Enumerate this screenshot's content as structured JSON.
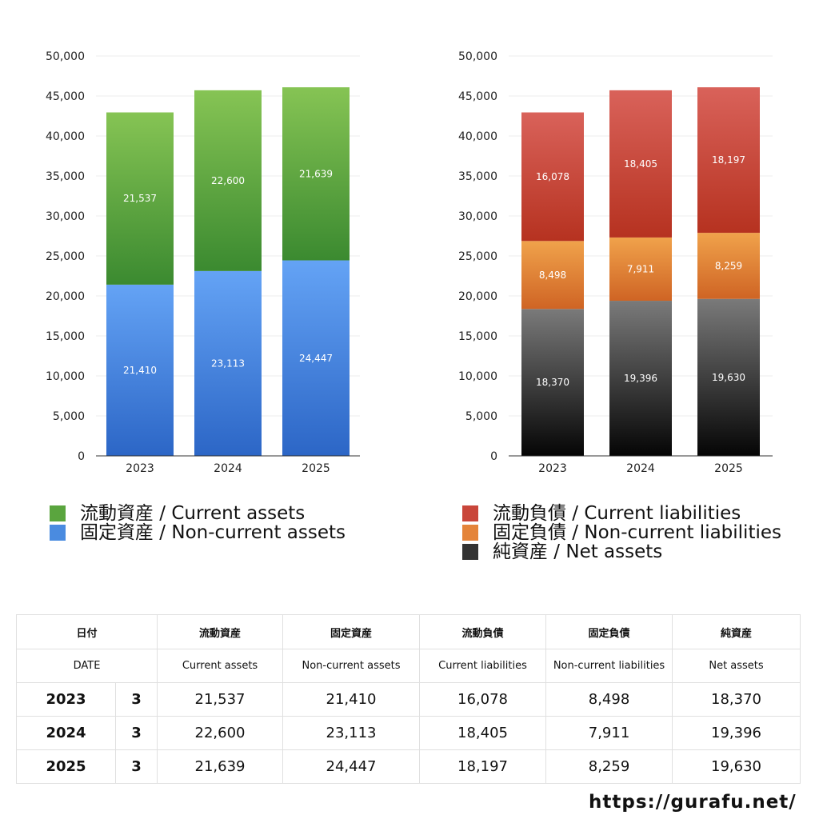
{
  "chart_data": [
    {
      "type": "bar",
      "stacked": true,
      "categories": [
        "2023",
        "2024",
        "2025"
      ],
      "series": [
        {
          "name": "固定資産 / Non-current assets",
          "values": [
            21410,
            23113,
            24447
          ],
          "color_top": "#64a3f5",
          "color_bottom": "#2c66c6"
        },
        {
          "name": "流動資産 / Current assets",
          "values": [
            21537,
            22600,
            21639
          ],
          "color_top": "#86c454",
          "color_bottom": "#3b8a30"
        }
      ],
      "ylim": [
        0,
        50000
      ],
      "yticks": [
        "0",
        "5,000",
        "10,000",
        "15,000",
        "20,000",
        "25,000",
        "30,000",
        "35,000",
        "40,000",
        "45,000",
        "50,000"
      ],
      "grid": true
    },
    {
      "type": "bar",
      "stacked": true,
      "categories": [
        "2023",
        "2024",
        "2025"
      ],
      "series": [
        {
          "name": "純資産 / Net assets",
          "values": [
            18370,
            19396,
            19630
          ],
          "color_top": "#7a7a7a",
          "color_bottom": "#050505"
        },
        {
          "name": "固定負債 / Non-current liabilities",
          "values": [
            8498,
            7911,
            8259
          ],
          "color_top": "#f0a24b",
          "color_bottom": "#cf6424"
        },
        {
          "name": "流動負債 / Current liabilities",
          "values": [
            16078,
            18405,
            18197
          ],
          "color_top": "#d9625a",
          "color_bottom": "#b63220"
        }
      ],
      "ylim": [
        0,
        50000
      ],
      "yticks": [
        "0",
        "5,000",
        "10,000",
        "15,000",
        "20,000",
        "25,000",
        "30,000",
        "35,000",
        "40,000",
        "45,000",
        "50,000"
      ],
      "grid": true
    }
  ],
  "legend_left": [
    {
      "label": "流動資産 / Current assets",
      "color": "#5aa53e"
    },
    {
      "label": "固定資産 / Non-current assets",
      "color": "#4a8be0"
    }
  ],
  "legend_right": [
    {
      "label": "流動負債 / Current liabilities",
      "color": "#c9463a"
    },
    {
      "label": "固定負債 / Non-current liabilities",
      "color": "#e4843a"
    },
    {
      "label": "純資産 / Net assets",
      "color": "#333333"
    }
  ],
  "table": {
    "header_ja": [
      "日付",
      "流動資産",
      "固定資産",
      "流動負債",
      "固定負債",
      "純資産"
    ],
    "header_en": [
      "DATE",
      "Current assets",
      "Non-current assets",
      "Current liabilities",
      "Non-current liabilities",
      "Net assets"
    ],
    "rows": [
      {
        "year": "2023",
        "month": "3",
        "values": [
          "21,537",
          "21,410",
          "16,078",
          "8,498",
          "18,370"
        ]
      },
      {
        "year": "2024",
        "month": "3",
        "values": [
          "22,600",
          "23,113",
          "18,405",
          "7,911",
          "19,396"
        ]
      },
      {
        "year": "2025",
        "month": "3",
        "values": [
          "21,639",
          "24,447",
          "18,197",
          "8,259",
          "19,630"
        ]
      }
    ]
  },
  "site": "https://gurafu.net/"
}
